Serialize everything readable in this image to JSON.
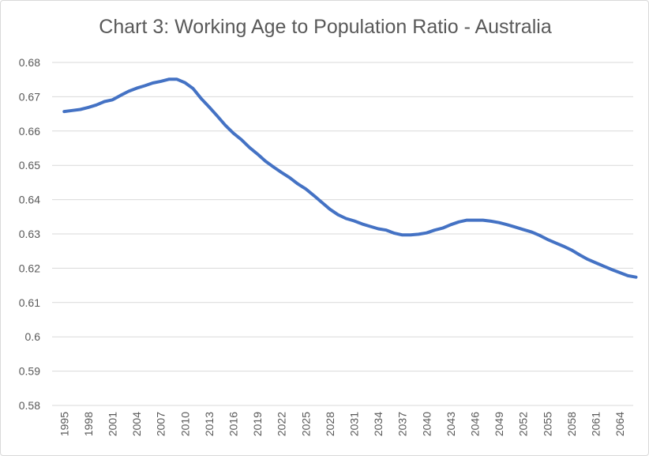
{
  "chart_data": {
    "type": "line",
    "title": "Chart 3: Working Age to Population Ratio - Australia",
    "xlabel": "",
    "ylabel": "",
    "ylim": [
      0.58,
      0.68
    ],
    "y_ticks": [
      "0.58",
      "0.59",
      "0.6",
      "0.61",
      "0.62",
      "0.63",
      "0.64",
      "0.65",
      "0.66",
      "0.67",
      "0.68"
    ],
    "x_ticks": [
      "1995",
      "1998",
      "2001",
      "2004",
      "2007",
      "2010",
      "2013",
      "2016",
      "2019",
      "2022",
      "2025",
      "2028",
      "2031",
      "2034",
      "2037",
      "2040",
      "2043",
      "2046",
      "2049",
      "2052",
      "2055",
      "2058",
      "2061",
      "2064"
    ],
    "grid": true,
    "legend": "none",
    "line_color": "#4472c4",
    "series": [
      {
        "x": [
          1995,
          1996,
          1997,
          1998,
          1999,
          2000,
          2001,
          2002,
          2003,
          2004,
          2005,
          2006,
          2007,
          2008,
          2009,
          2010,
          2011,
          2012,
          2013,
          2014,
          2015,
          2016,
          2017,
          2018,
          2019,
          2020,
          2021,
          2022,
          2023,
          2024,
          2025,
          2026,
          2027,
          2028,
          2029,
          2030,
          2031,
          2032,
          2033,
          2034,
          2035,
          2036,
          2037,
          2038,
          2039,
          2040,
          2041,
          2042,
          2043,
          2044,
          2045,
          2046,
          2047,
          2048,
          2049,
          2050,
          2051,
          2052,
          2053,
          2054,
          2055,
          2056,
          2057,
          2058,
          2059,
          2060,
          2061,
          2062,
          2063,
          2064,
          2065,
          2066
        ],
        "values": [
          0.6657,
          0.666,
          0.6663,
          0.6669,
          0.6676,
          0.6686,
          0.6691,
          0.6704,
          0.6716,
          0.6725,
          0.6732,
          0.674,
          0.6745,
          0.6751,
          0.6751,
          0.6741,
          0.6724,
          0.6695,
          0.667,
          0.6644,
          0.6617,
          0.6594,
          0.6575,
          0.6552,
          0.6533,
          0.6512,
          0.6495,
          0.6479,
          0.6464,
          0.6446,
          0.6431,
          0.6412,
          0.6392,
          0.6372,
          0.6356,
          0.6345,
          0.6338,
          0.6329,
          0.6322,
          0.6315,
          0.6311,
          0.6302,
          0.6297,
          0.6297,
          0.6299,
          0.6303,
          0.6311,
          0.6317,
          0.6327,
          0.6335,
          0.634,
          0.634,
          0.634,
          0.6337,
          0.6333,
          0.6327,
          0.632,
          0.6313,
          0.6306,
          0.6296,
          0.6284,
          0.6274,
          0.6264,
          0.6253,
          0.6239,
          0.6226,
          0.6216,
          0.6206,
          0.6196,
          0.6187,
          0.6178,
          0.6174
        ]
      }
    ]
  }
}
